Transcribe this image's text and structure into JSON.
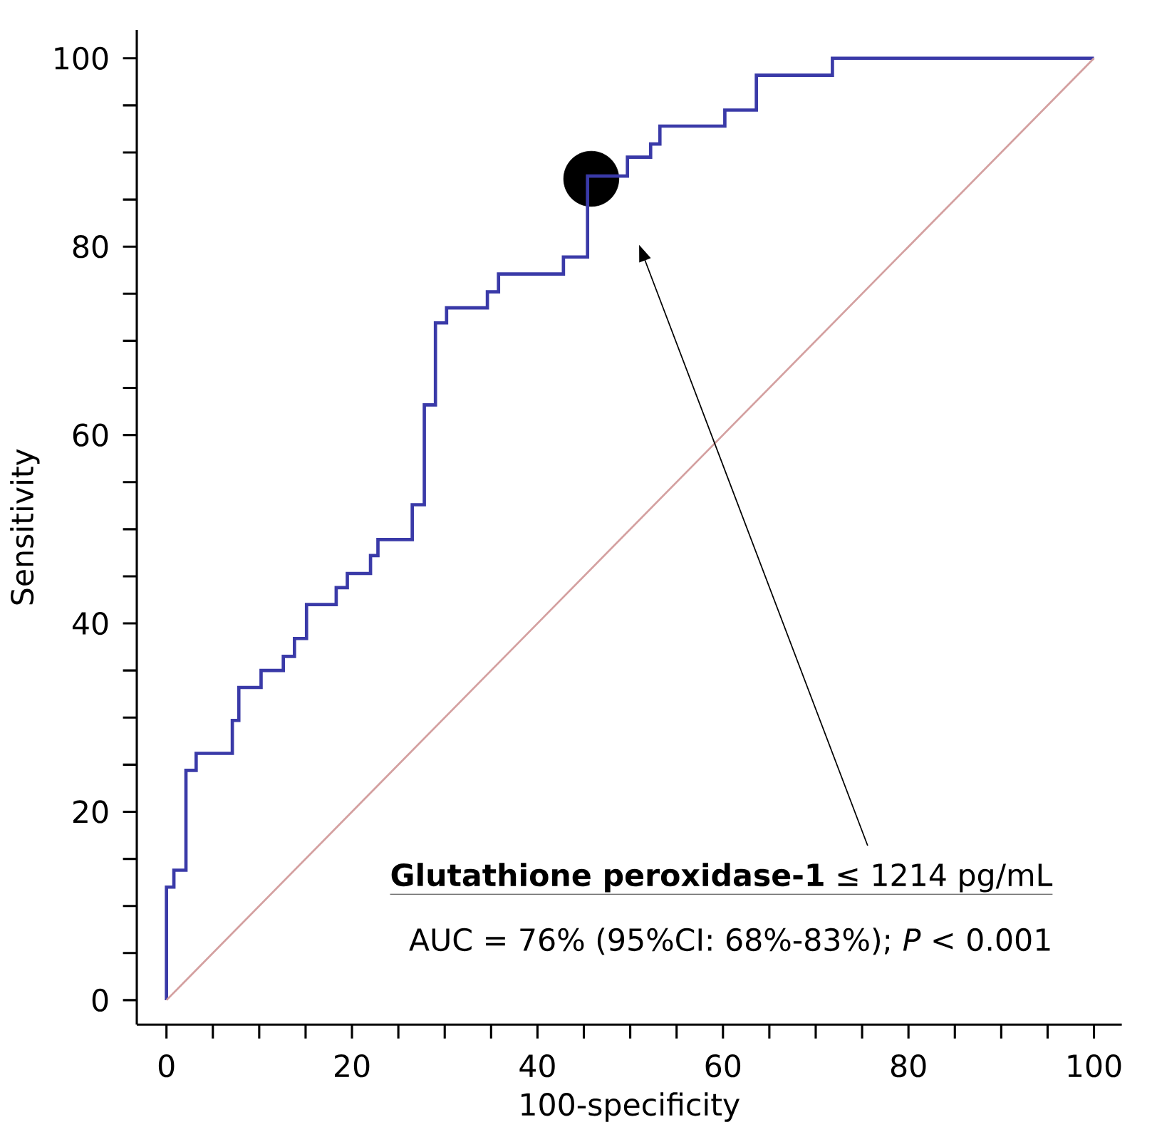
{
  "chart_data": {
    "type": "step",
    "xlabel": "100-specificity",
    "ylabel": "Sensitivity",
    "xlim": [
      -3.2,
      103
    ],
    "ylim": [
      -2.6,
      103
    ],
    "xticks": [
      0,
      20,
      40,
      60,
      80,
      100
    ],
    "yticks": [
      0,
      20,
      40,
      60,
      80,
      100
    ],
    "grid": false,
    "series": [
      {
        "color": "#3a3aa8",
        "marker": "none",
        "x": [
          0,
          0,
          0.8,
          2.1,
          3.2,
          7.1,
          7.8,
          10.2,
          12.6,
          13.8,
          15.1,
          18.3,
          19.5,
          22.0,
          22.8,
          26.5,
          27.8,
          29.0,
          30.2,
          34.6,
          35.8,
          42.8,
          45.4,
          49.7,
          52.2,
          53.2,
          60.2,
          63.6,
          71.8,
          100
        ],
        "values": [
          0,
          12.0,
          13.8,
          24.4,
          26.2,
          29.7,
          33.2,
          35.0,
          36.5,
          38.4,
          42.0,
          43.8,
          45.3,
          47.2,
          48.9,
          52.6,
          63.2,
          71.9,
          73.5,
          75.2,
          77.1,
          78.9,
          87.5,
          89.5,
          90.9,
          92.8,
          94.5,
          98.2,
          100,
          100
        ]
      },
      {
        "type": "line",
        "color": "#d4a0a0",
        "marker": "none",
        "x": [
          0,
          100
        ],
        "values": [
          0,
          100
        ]
      },
      {
        "type": "scatter",
        "color": "#000000",
        "marker": "circle",
        "x": [
          45.8
        ],
        "values": [
          87.2
        ]
      }
    ],
    "annotations": [
      "**Glutathione peroxidase-1** ≤ 1214 pg/mL",
      "AUC = 76% (95%CI: 68%-83%); *P* < 0.001"
    ]
  }
}
